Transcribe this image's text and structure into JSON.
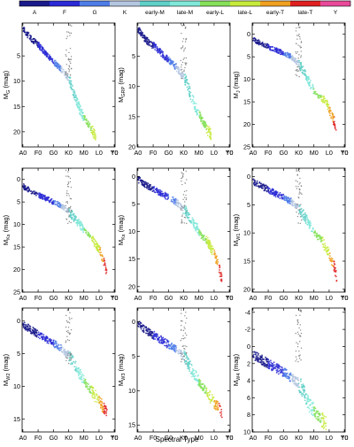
{
  "colorbar": {
    "labels": [
      "A",
      "F",
      "G",
      "K",
      "early-M",
      "late-M",
      "early-L",
      "late-L",
      "early-T",
      "late-T",
      "Y"
    ],
    "colors": [
      "#1a1a8c",
      "#2a2ad6",
      "#4f7de8",
      "#b4c6e0",
      "#5fd0c8",
      "#7fe8d8",
      "#86e05a",
      "#c6ea3a",
      "#f0a020",
      "#e02020",
      "#e84a9a"
    ]
  },
  "figure": {
    "xlabel": "Spectral Type",
    "xticks": [
      "A0",
      "F0",
      "G0",
      "K0",
      "M0",
      "L0",
      "T0",
      "Y0"
    ]
  },
  "chart_data": [
    {
      "type": "scatter",
      "ylabel": "M_G (mag)",
      "ylabel_base": "M",
      "ylabel_sub": "G",
      "ylabel_unit": "(mag)",
      "ylim": [
        23,
        -1.5
      ],
      "yticks": [
        5,
        10,
        15,
        20
      ],
      "trend": [
        [
          0,
          -0.5
        ],
        [
          5,
          1.5
        ],
        [
          10,
          2.8
        ],
        [
          15,
          4.5
        ],
        [
          20,
          6.2
        ],
        [
          25,
          7.5
        ],
        [
          30,
          9.5
        ],
        [
          32,
          11
        ],
        [
          34,
          13
        ],
        [
          36,
          14.5
        ],
        [
          38,
          16
        ],
        [
          40,
          17
        ],
        [
          42,
          18
        ],
        [
          44,
          19
        ],
        [
          46,
          20
        ],
        [
          48,
          21
        ]
      ],
      "extent": [
        0,
        48
      ]
    },
    {
      "type": "scatter",
      "ylabel": "M_GRP (mag)",
      "ylabel_base": "M",
      "ylabel_sub": "GRP",
      "ylabel_unit": "(mag)",
      "ylim": [
        20,
        -0.5
      ],
      "yticks": [
        5,
        10,
        15,
        20
      ],
      "trend": [
        [
          0,
          0.5
        ],
        [
          5,
          2.2
        ],
        [
          10,
          3.2
        ],
        [
          15,
          4.4
        ],
        [
          20,
          5.6
        ],
        [
          25,
          6.8
        ],
        [
          30,
          8.3
        ],
        [
          32,
          9.5
        ],
        [
          34,
          11
        ],
        [
          36,
          12.4
        ],
        [
          38,
          13.6
        ],
        [
          40,
          14.5
        ],
        [
          42,
          15.5
        ],
        [
          44,
          16.4
        ],
        [
          46,
          17.3
        ],
        [
          48,
          18
        ]
      ],
      "extent": [
        0,
        48
      ]
    },
    {
      "type": "scatter",
      "ylabel": "M_J (mag)",
      "ylabel_base": "M",
      "ylabel_sub": "J",
      "ylabel_unit": "(mag)",
      "ylim": [
        25,
        -2.5
      ],
      "yticks": [
        0,
        5,
        10,
        15,
        20,
        25
      ],
      "trend": [
        [
          0,
          1
        ],
        [
          5,
          2
        ],
        [
          10,
          2.8
        ],
        [
          15,
          3.5
        ],
        [
          20,
          4.2
        ],
        [
          25,
          5
        ],
        [
          30,
          6.5
        ],
        [
          33,
          8
        ],
        [
          36,
          10
        ],
        [
          39,
          12
        ],
        [
          42,
          13.5
        ],
        [
          45,
          14
        ],
        [
          48,
          15
        ],
        [
          50,
          16.5
        ],
        [
          53,
          19
        ],
        [
          55,
          22
        ]
      ],
      "extent": [
        0,
        55
      ]
    },
    {
      "type": "scatter",
      "ylabel": "M_Ks (mag)",
      "ylabel_base": "M",
      "ylabel_sub": "Ks",
      "ylabel_unit": "(mag)",
      "ylim": [
        25,
        -2.5
      ],
      "yticks": [
        0,
        5,
        10,
        15,
        20,
        25
      ],
      "trend": [
        [
          0,
          1.5
        ],
        [
          5,
          2.5
        ],
        [
          10,
          3.4
        ],
        [
          15,
          4.2
        ],
        [
          20,
          5
        ],
        [
          25,
          5.8
        ],
        [
          30,
          7
        ],
        [
          33,
          8.2
        ],
        [
          36,
          9.5
        ],
        [
          39,
          10.8
        ],
        [
          42,
          12
        ],
        [
          45,
          13
        ],
        [
          48,
          14.5
        ],
        [
          50,
          15.5
        ],
        [
          53,
          18
        ],
        [
          55,
          21
        ]
      ],
      "extent": [
        0,
        55
      ]
    },
    {
      "type": "scatter",
      "ylabel": "M_Ks (mag)",
      "ylabel_base": "M",
      "ylabel_sub": "Ks",
      "ylabel_unit": "(mag)",
      "ylim": [
        21,
        -1.5
      ],
      "yticks": [
        0,
        5,
        10,
        15,
        20
      ],
      "trend": [
        [
          0,
          0.5
        ],
        [
          5,
          1.5
        ],
        [
          10,
          2.3
        ],
        [
          15,
          3
        ],
        [
          20,
          3.8
        ],
        [
          25,
          4.6
        ],
        [
          30,
          5.8
        ],
        [
          33,
          7
        ],
        [
          36,
          8.3
        ],
        [
          39,
          9.6
        ],
        [
          42,
          10.8
        ],
        [
          45,
          11.7
        ],
        [
          48,
          13
        ],
        [
          50,
          14
        ],
        [
          53,
          16
        ],
        [
          55,
          18.5
        ]
      ],
      "extent": [
        0,
        55
      ]
    },
    {
      "type": "scatter",
      "ylabel": "M_W1 (mag)",
      "ylabel_base": "M",
      "ylabel_sub": "W1",
      "ylabel_unit": "(mag)",
      "ylim": [
        20.5,
        -1.5
      ],
      "yticks": [
        0,
        5,
        10,
        15,
        20
      ],
      "trend": [
        [
          0,
          0.8
        ],
        [
          5,
          1.6
        ],
        [
          10,
          2.3
        ],
        [
          15,
          3
        ],
        [
          20,
          3.7
        ],
        [
          25,
          4.4
        ],
        [
          30,
          5.5
        ],
        [
          33,
          6.7
        ],
        [
          36,
          8
        ],
        [
          39,
          9.3
        ],
        [
          42,
          10.5
        ],
        [
          45,
          11.3
        ],
        [
          48,
          12.6
        ],
        [
          50,
          13.5
        ],
        [
          53,
          15.5
        ],
        [
          55,
          18
        ]
      ],
      "extent": [
        0,
        55
      ]
    },
    {
      "type": "scatter",
      "ylabel": "M_W2 (mag)",
      "ylabel_base": "M",
      "ylabel_sub": "W2",
      "ylabel_unit": "(mag)",
      "ylim": [
        17,
        -2
      ],
      "yticks": [
        0,
        5,
        10,
        15
      ],
      "trend": [
        [
          0,
          0.5
        ],
        [
          5,
          1.3
        ],
        [
          10,
          2
        ],
        [
          15,
          2.7
        ],
        [
          20,
          3.4
        ],
        [
          25,
          4.1
        ],
        [
          30,
          5.2
        ],
        [
          33,
          6.3
        ],
        [
          36,
          7.5
        ],
        [
          39,
          8.7
        ],
        [
          42,
          9.8
        ],
        [
          45,
          10.7
        ],
        [
          48,
          11.6
        ],
        [
          50,
          12.3
        ],
        [
          53,
          13.3
        ],
        [
          55,
          14.2
        ]
      ],
      "extent": [
        0,
        55
      ]
    },
    {
      "type": "scatter",
      "ylabel": "M_W3 (mag)",
      "ylabel_base": "M",
      "ylabel_sub": "W3",
      "ylabel_unit": "(mag)",
      "ylim": [
        16,
        -2
      ],
      "yticks": [
        0,
        5,
        10,
        15
      ],
      "trend": [
        [
          0,
          0.3
        ],
        [
          5,
          1.2
        ],
        [
          10,
          1.9
        ],
        [
          15,
          2.6
        ],
        [
          20,
          3.3
        ],
        [
          25,
          4
        ],
        [
          30,
          5
        ],
        [
          33,
          6
        ],
        [
          36,
          7.2
        ],
        [
          39,
          8.3
        ],
        [
          42,
          9.3
        ],
        [
          45,
          10.1
        ],
        [
          48,
          11
        ],
        [
          50,
          11.6
        ],
        [
          53,
          12.5
        ],
        [
          55,
          13.3
        ]
      ],
      "extent": [
        0,
        55
      ]
    },
    {
      "type": "scatter",
      "ylabel": "M_W4 (mag)",
      "ylabel_base": "M",
      "ylabel_sub": "W4",
      "ylabel_unit": "(mag)",
      "ylim": [
        10,
        -4.5
      ],
      "yticks": [
        -4,
        -2,
        0,
        2,
        4,
        6,
        8,
        10
      ],
      "trend": [
        [
          0,
          1
        ],
        [
          5,
          1.5
        ],
        [
          10,
          2
        ],
        [
          15,
          2.5
        ],
        [
          20,
          3
        ],
        [
          25,
          3.6
        ],
        [
          30,
          4.3
        ],
        [
          33,
          5.2
        ],
        [
          36,
          6.5
        ],
        [
          39,
          7.3
        ],
        [
          42,
          8
        ],
        [
          45,
          8.5
        ],
        [
          48,
          9
        ]
      ],
      "extent": [
        0,
        48
      ]
    }
  ]
}
